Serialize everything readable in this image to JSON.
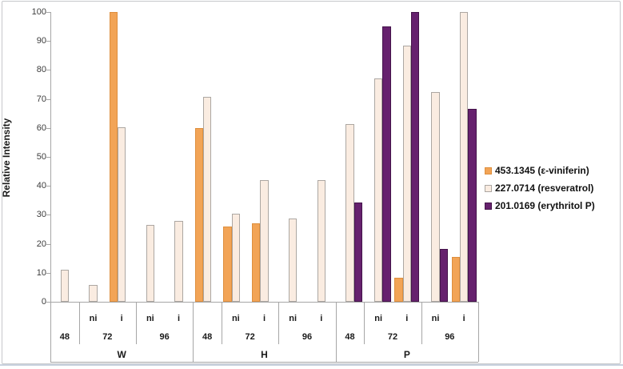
{
  "chart_data": {
    "type": "bar",
    "title": "",
    "xlabel": "",
    "ylabel": "Relative Intensity",
    "ylim": [
      0,
      100
    ],
    "y_ticks": [
      0,
      10,
      20,
      30,
      40,
      50,
      60,
      70,
      80,
      90,
      100
    ],
    "grid": false,
    "legend_position": "right",
    "groups": [
      {
        "label": "W",
        "sections": [
          {
            "label": "48",
            "slot_labels": [
              ""
            ]
          },
          {
            "label": "72",
            "slot_labels": [
              "ni",
              "i"
            ]
          },
          {
            "label": "96",
            "slot_labels": [
              "ni",
              "i"
            ]
          }
        ]
      },
      {
        "label": "H",
        "sections": [
          {
            "label": "48",
            "slot_labels": [
              ""
            ]
          },
          {
            "label": "72",
            "slot_labels": [
              "ni",
              "i"
            ]
          },
          {
            "label": "96",
            "slot_labels": [
              "ni",
              "i"
            ]
          }
        ]
      },
      {
        "label": "P",
        "sections": [
          {
            "label": "48",
            "slot_labels": [
              ""
            ]
          },
          {
            "label": "72",
            "slot_labels": [
              "ni",
              "i"
            ]
          },
          {
            "label": "96",
            "slot_labels": [
              "ni",
              "i"
            ]
          }
        ]
      }
    ],
    "categories": [
      "W-48",
      "W-72-ni",
      "W-72-i",
      "W-96-ni",
      "W-96-i",
      "H-48",
      "H-72-ni",
      "H-72-i",
      "H-96-ni",
      "H-96-i",
      "P-48",
      "P-72-ni",
      "P-72-i",
      "P-96-ni",
      "P-96-i"
    ],
    "series": [
      {
        "name": "453.1345 (ε-viniferin)",
        "fill": "#F2A456",
        "border": "#DE8F3E",
        "values": [
          0,
          0,
          100,
          0,
          0,
          60,
          26,
          27,
          0,
          0,
          0,
          0,
          8.4,
          0,
          15.5
        ]
      },
      {
        "name": "227.0714 (resveratrol)",
        "fill": "#FAECE1",
        "border": "#ACA7A2",
        "values": [
          11.2,
          5.9,
          60.3,
          26.4,
          27.8,
          70.8,
          30.5,
          42,
          28.7,
          42,
          61.4,
          77,
          88.5,
          72.5,
          100
        ]
      },
      {
        "name": "201.0169 (erythritol P)",
        "fill": "#66216E",
        "border": "#44134A",
        "values": [
          0,
          0,
          0,
          0,
          0,
          0,
          0,
          0,
          0,
          0,
          34.4,
          95,
          100,
          18.2,
          66.5
        ]
      }
    ]
  }
}
